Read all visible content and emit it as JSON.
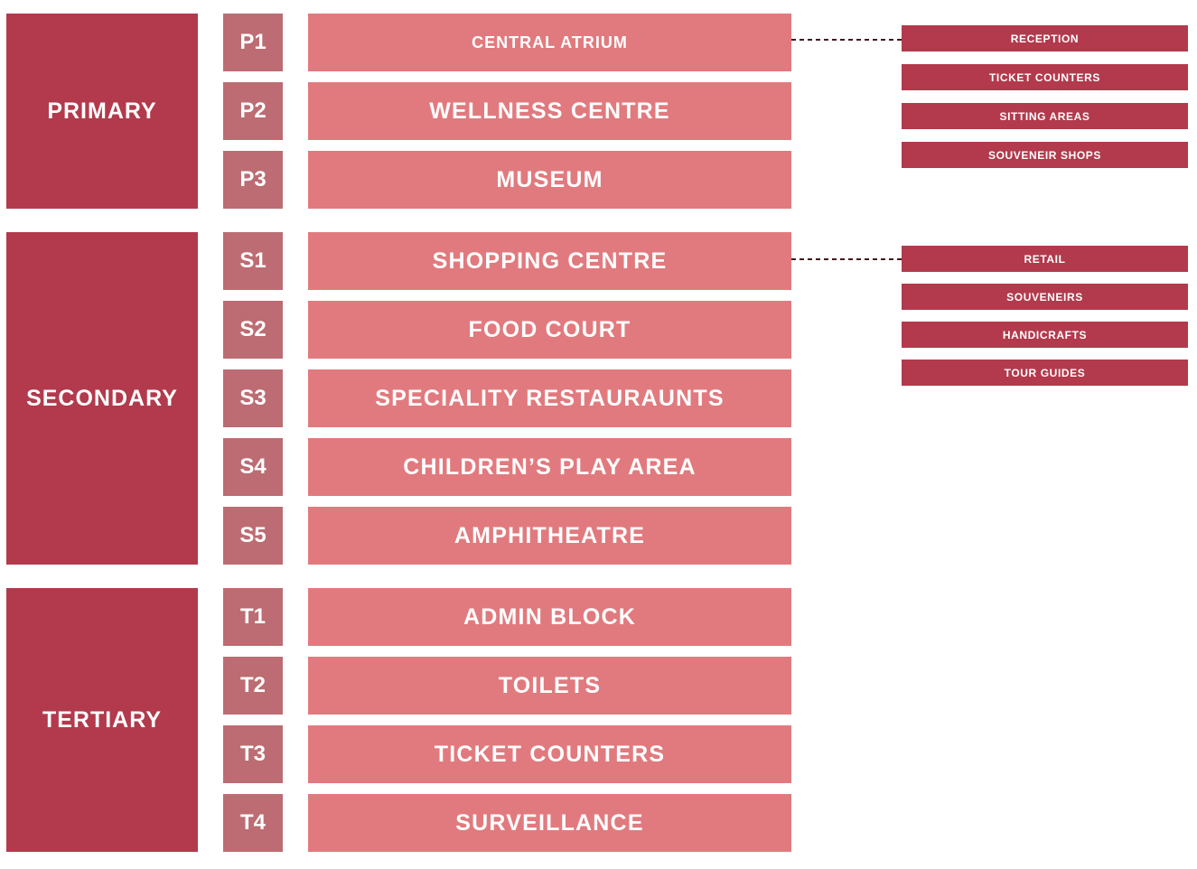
{
  "palette": {
    "group-block": "#b23a4c",
    "code-square": "#bc6c72",
    "bar": "#e17a7e",
    "sub-bar": "#b23a4c",
    "connector": "#45151c"
  },
  "groups": [
    {
      "label": "PRIMARY",
      "rows": [
        {
          "code": "P1",
          "label": "CENTRAL ATRIUM"
        },
        {
          "code": "P2",
          "label": "WELLNESS CENTRE"
        },
        {
          "code": "P3",
          "label": "MUSEUM"
        }
      ]
    },
    {
      "label": "SECONDARY",
      "rows": [
        {
          "code": "S1",
          "label": "SHOPPING CENTRE"
        },
        {
          "code": "S2",
          "label": "FOOD COURT"
        },
        {
          "code": "S3",
          "label": "SPECIALITY RESTAURAUNTS"
        },
        {
          "code": "S4",
          "label": "CHILDREN’S PLAY AREA"
        },
        {
          "code": "S5",
          "label": "AMPHITHEATRE"
        }
      ]
    },
    {
      "label": "TERTIARY",
      "rows": [
        {
          "code": "T1",
          "label": "ADMIN BLOCK"
        },
        {
          "code": "T2",
          "label": "TOILETS"
        },
        {
          "code": "T3",
          "label": "TICKET COUNTERS"
        },
        {
          "code": "T4",
          "label": "SURVEILLANCE"
        }
      ]
    }
  ],
  "sublists": [
    {
      "linked_row": "CENTRAL ATRIUM",
      "items": [
        "RECEPTION",
        "TICKET COUNTERS",
        "SITTING AREAS",
        "SOUVENEIR SHOPS"
      ]
    },
    {
      "linked_row": "SHOPPING CENTRE",
      "items": [
        "RETAIL",
        "SOUVENEIRS",
        "HANDICRAFTS",
        "TOUR GUIDES"
      ]
    }
  ]
}
